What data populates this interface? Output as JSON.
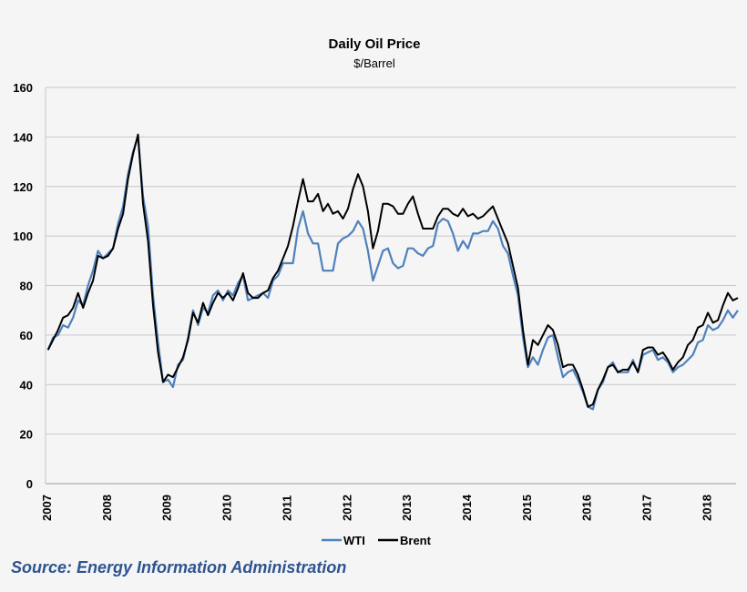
{
  "chart_data": {
    "type": "line",
    "title": "Daily Oil Price",
    "subtitle": "$/Barrel",
    "xlabel": "",
    "ylabel": "",
    "ylim": [
      0,
      160
    ],
    "yticks": [
      0,
      20,
      40,
      60,
      80,
      100,
      120,
      140,
      160
    ],
    "xticks": [
      "2007",
      "2008",
      "2009",
      "2010",
      "2011",
      "2012",
      "2013",
      "2014",
      "2015",
      "2016",
      "2017",
      "2018"
    ],
    "grid": true,
    "legend": "bottom",
    "x": [
      "2007-01",
      "2007-02",
      "2007-03",
      "2007-04",
      "2007-05",
      "2007-06",
      "2007-07",
      "2007-08",
      "2007-09",
      "2007-10",
      "2007-11",
      "2007-12",
      "2008-01",
      "2008-02",
      "2008-03",
      "2008-04",
      "2008-05",
      "2008-06",
      "2008-07",
      "2008-08",
      "2008-09",
      "2008-10",
      "2008-11",
      "2008-12",
      "2009-01",
      "2009-02",
      "2009-03",
      "2009-04",
      "2009-05",
      "2009-06",
      "2009-07",
      "2009-08",
      "2009-09",
      "2009-10",
      "2009-11",
      "2009-12",
      "2010-01",
      "2010-02",
      "2010-03",
      "2010-04",
      "2010-05",
      "2010-06",
      "2010-07",
      "2010-08",
      "2010-09",
      "2010-10",
      "2010-11",
      "2010-12",
      "2011-01",
      "2011-02",
      "2011-03",
      "2011-04",
      "2011-05",
      "2011-06",
      "2011-07",
      "2011-08",
      "2011-09",
      "2011-10",
      "2011-11",
      "2011-12",
      "2012-01",
      "2012-02",
      "2012-03",
      "2012-04",
      "2012-05",
      "2012-06",
      "2012-07",
      "2012-08",
      "2012-09",
      "2012-10",
      "2012-11",
      "2012-12",
      "2013-01",
      "2013-02",
      "2013-03",
      "2013-04",
      "2013-05",
      "2013-06",
      "2013-07",
      "2013-08",
      "2013-09",
      "2013-10",
      "2013-11",
      "2013-12",
      "2014-01",
      "2014-02",
      "2014-03",
      "2014-04",
      "2014-05",
      "2014-06",
      "2014-07",
      "2014-08",
      "2014-09",
      "2014-10",
      "2014-11",
      "2014-12",
      "2015-01",
      "2015-02",
      "2015-03",
      "2015-04",
      "2015-05",
      "2015-06",
      "2015-07",
      "2015-08",
      "2015-09",
      "2015-10",
      "2015-11",
      "2015-12",
      "2016-01",
      "2016-02",
      "2016-03",
      "2016-04",
      "2016-05",
      "2016-06",
      "2016-07",
      "2016-08",
      "2016-09",
      "2016-10",
      "2016-11",
      "2016-12",
      "2017-01",
      "2017-02",
      "2017-03",
      "2017-04",
      "2017-05",
      "2017-06",
      "2017-07",
      "2017-08",
      "2017-09",
      "2017-10",
      "2017-11",
      "2017-12",
      "2018-01",
      "2018-02",
      "2018-03",
      "2018-04",
      "2018-05",
      "2018-06",
      "2018-07"
    ],
    "series": [
      {
        "name": "WTI",
        "color": "#4f81bd",
        "values": [
          54,
          59,
          60,
          64,
          63,
          67,
          74,
          72,
          80,
          86,
          94,
          91,
          93,
          95,
          105,
          112,
          125,
          134,
          140,
          116,
          104,
          76,
          57,
          41,
          42,
          39,
          48,
          50,
          59,
          70,
          64,
          71,
          69,
          76,
          78,
          74,
          78,
          76,
          81,
          84,
          74,
          75,
          76,
          77,
          75,
          82,
          84,
          89,
          89,
          89,
          103,
          110,
          101,
          97,
          97,
          86,
          86,
          86,
          97,
          99,
          100,
          102,
          106,
          103,
          94,
          82,
          88,
          94,
          95,
          89,
          87,
          88,
          95,
          95,
          93,
          92,
          95,
          96,
          105,
          107,
          106,
          101,
          94,
          98,
          95,
          101,
          101,
          102,
          102,
          106,
          103,
          96,
          93,
          84,
          76,
          59,
          47,
          51,
          48,
          54,
          59,
          60,
          51,
          43,
          45,
          46,
          42,
          37,
          31,
          30,
          38,
          41,
          47,
          49,
          45,
          45,
          45,
          50,
          45,
          52,
          53,
          54,
          50,
          51,
          49,
          45,
          47,
          48,
          50,
          52,
          57,
          58,
          64,
          62,
          63,
          66,
          70,
          67,
          70
        ]
      },
      {
        "name": "Brent",
        "color": "#000000",
        "values": [
          54,
          58,
          62,
          67,
          68,
          71,
          77,
          71,
          77,
          82,
          92,
          91,
          92,
          95,
          103,
          109,
          123,
          133,
          141,
          113,
          98,
          72,
          53,
          41,
          44,
          43,
          47,
          51,
          58,
          69,
          65,
          73,
          68,
          73,
          77,
          75,
          77,
          74,
          79,
          85,
          77,
          75,
          75,
          77,
          78,
          83,
          86,
          91,
          96,
          104,
          114,
          123,
          114,
          114,
          117,
          110,
          113,
          109,
          110,
          107,
          111,
          119,
          125,
          120,
          110,
          95,
          102,
          113,
          113,
          112,
          109,
          109,
          113,
          116,
          109,
          103,
          103,
          103,
          108,
          111,
          111,
          109,
          108,
          111,
          108,
          109,
          107,
          108,
          110,
          112,
          107,
          102,
          97,
          88,
          79,
          62,
          48,
          58,
          56,
          60,
          64,
          62,
          56,
          47,
          48,
          48,
          44,
          38,
          31,
          32,
          38,
          42,
          47,
          48,
          45,
          46,
          46,
          49,
          45,
          54,
          55,
          55,
          52,
          53,
          50,
          46,
          49,
          51,
          56,
          58,
          63,
          64,
          69,
          65,
          66,
          72,
          77,
          74,
          75
        ]
      }
    ]
  },
  "source": "Source: Energy Information Administration"
}
